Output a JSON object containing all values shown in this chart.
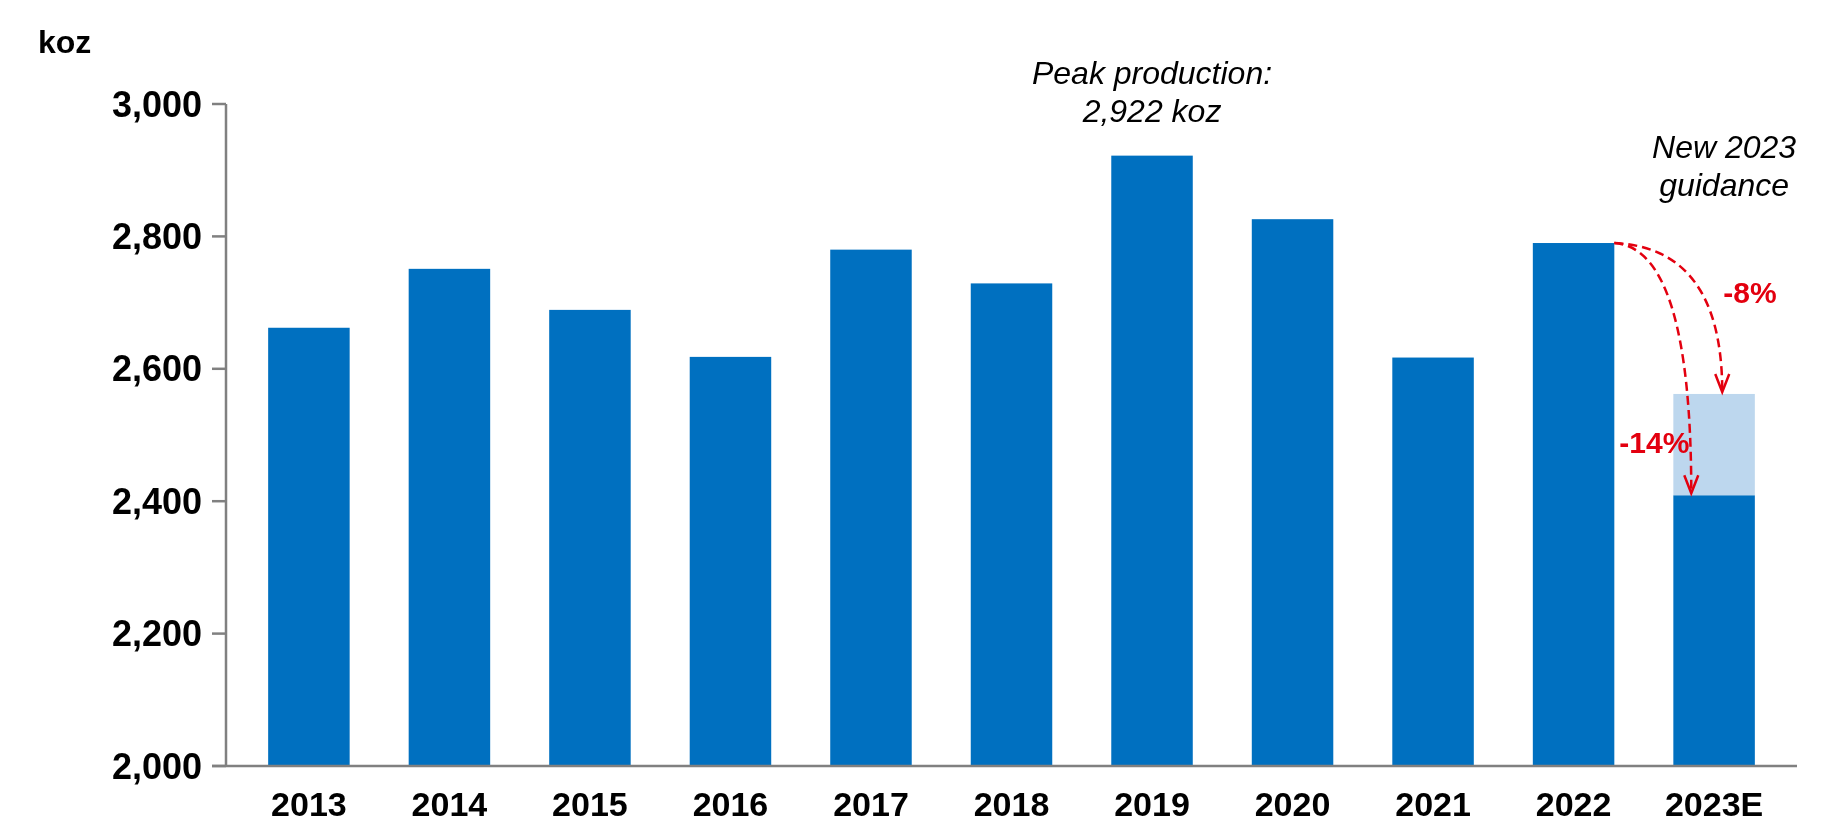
{
  "chart_data": {
    "type": "bar",
    "ylabel": "koz",
    "categories": [
      "2013",
      "2014",
      "2015",
      "2016",
      "2017",
      "2018",
      "2019",
      "2020",
      "2021",
      "2022",
      "2023E"
    ],
    "series": [
      {
        "color": "#0070c0",
        "values": [
          2662,
          2751,
          2689,
          2618,
          2780,
          2729,
          2922,
          2826,
          2617,
          2790,
          2409
        ]
      },
      {
        "color": "#bdd7ee",
        "values": [
          null,
          null,
          null,
          null,
          null,
          null,
          null,
          null,
          null,
          null,
          153
        ],
        "base": [
          null,
          null,
          null,
          null,
          null,
          null,
          null,
          null,
          null,
          null,
          2409
        ]
      }
    ],
    "ylim": [
      2000,
      3000
    ],
    "yticks": [
      {
        "value": 2000,
        "label": "2,000"
      },
      {
        "value": 2200,
        "label": "2,200"
      },
      {
        "value": 2400,
        "label": "2,400"
      },
      {
        "value": 2600,
        "label": "2,600"
      },
      {
        "value": 2800,
        "label": "2,800"
      },
      {
        "value": 3000,
        "label": "3,000"
      }
    ],
    "grid": false,
    "annotations": [
      {
        "text": "Peak production: 2,922 koz",
        "x": "2019",
        "y": 2922
      },
      "New 2023 guidance",
      {
        "text": "-8%",
        "x": "2023E",
        "y": 2562
      },
      {
        "text": "-14%",
        "x": "2023E",
        "y": 2409
      }
    ]
  }
}
